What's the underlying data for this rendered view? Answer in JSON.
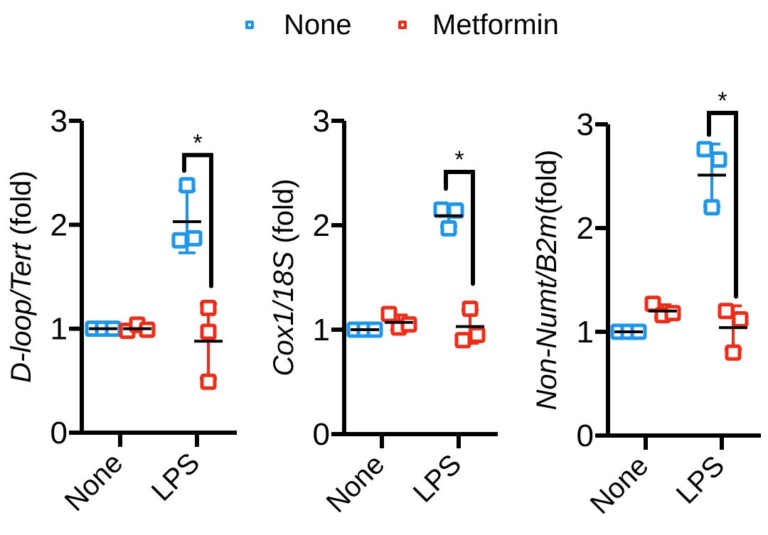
{
  "legend": {
    "items": [
      {
        "label": "None",
        "color": "#1a96f0"
      },
      {
        "label": "Metformin",
        "color": "#f52a14"
      }
    ]
  },
  "chart_data": [
    {
      "type": "scatter",
      "title": "",
      "ylabel_parts": [
        {
          "text": "D-loop/Tert",
          "italic": true
        },
        {
          "text": " (fold)",
          "italic": false
        }
      ],
      "ylabel": "D-loop/Tert (fold)",
      "xlabel": "",
      "ylim": [
        0,
        3
      ],
      "yticks": [
        0,
        1,
        2,
        3
      ],
      "categories": [
        "None",
        "LPS"
      ],
      "series": [
        {
          "name": "None",
          "color": "#1a96f0",
          "points": [
            [
              1.0,
              1.0,
              1.0
            ],
            [
              2.38,
              1.87,
              1.85
            ]
          ],
          "mean": [
            1.0,
            2.03
          ],
          "sd": [
            0.0,
            0.3
          ]
        },
        {
          "name": "Metformin",
          "color": "#f52a14",
          "points": [
            [
              0.98,
              1.04,
              0.99
            ],
            [
              1.2,
              0.97,
              0.49
            ]
          ],
          "mean": [
            1.0,
            0.88
          ],
          "sd": [
            0.03,
            0.36
          ]
        }
      ],
      "significance": [
        {
          "category": "LPS",
          "label": "*",
          "y_top": 2.67,
          "left_end": 2.52,
          "right_end": 1.41
        }
      ]
    },
    {
      "type": "scatter",
      "title": "",
      "ylabel_parts": [
        {
          "text": "Cox1/18S",
          "italic": true
        },
        {
          "text": " (fold)",
          "italic": false
        }
      ],
      "ylabel": "Cox1/18S (fold)",
      "xlabel": "",
      "ylim": [
        0,
        3
      ],
      "yticks": [
        0,
        1,
        2,
        3
      ],
      "categories": [
        "None",
        "LPS"
      ],
      "series": [
        {
          "name": "None",
          "color": "#1a96f0",
          "points": [
            [
              1.0,
              1.0,
              1.0
            ],
            [
              2.15,
              2.14,
              1.97
            ]
          ],
          "mean": [
            1.0,
            2.09
          ],
          "sd": [
            0.0,
            0.1
          ]
        },
        {
          "name": "Metformin",
          "color": "#f52a14",
          "points": [
            [
              1.15,
              1.02,
              1.05
            ],
            [
              1.2,
              0.95,
              0.9
            ]
          ],
          "mean": [
            1.07,
            1.03
          ],
          "sd": [
            0.07,
            0.16
          ]
        }
      ],
      "significance": [
        {
          "category": "LPS",
          "label": "*",
          "y_top": 2.51,
          "left_end": 2.35,
          "right_end": 1.44
        }
      ]
    },
    {
      "type": "scatter",
      "title": "",
      "ylabel_parts": [
        {
          "text": "Non-Numt/B2m",
          "italic": true
        },
        {
          "text": "(fold)",
          "italic": false
        }
      ],
      "ylabel": "Non-Numt/B2m(fold)",
      "xlabel": "",
      "ylim": [
        0,
        3
      ],
      "yticks": [
        0,
        1,
        2,
        3
      ],
      "categories": [
        "None",
        "LPS"
      ],
      "series": [
        {
          "name": "None",
          "color": "#1a96f0",
          "points": [
            [
              1.0,
              1.0,
              1.0
            ],
            [
              2.76,
              2.66,
              2.2
            ]
          ],
          "mean": [
            1.0,
            2.51
          ],
          "sd": [
            0.0,
            0.3
          ]
        },
        {
          "name": "Metformin",
          "color": "#f52a14",
          "points": [
            [
              1.27,
              1.16,
              1.18
            ],
            [
              1.2,
              1.12,
              0.8
            ]
          ],
          "mean": [
            1.2,
            1.04
          ],
          "sd": [
            0.06,
            0.21
          ]
        }
      ],
      "significance": [
        {
          "category": "LPS",
          "label": "*",
          "y_top": 3.11,
          "left_end": 2.9,
          "right_end": 1.34
        }
      ]
    }
  ]
}
